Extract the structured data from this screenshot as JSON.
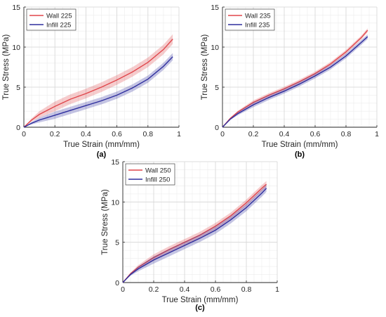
{
  "chart_data": [
    {
      "type": "line",
      "panel_label": "(a)",
      "xlabel": "True Strain (mm/mm)",
      "ylabel": "True Stress (MPa)",
      "xlim": [
        0,
        1
      ],
      "ylim": [
        0,
        15
      ],
      "xticks": [
        "0",
        "0.2",
        "0.4",
        "0.6",
        "0.8",
        "1"
      ],
      "yticks": [
        "0",
        "5",
        "10",
        "15"
      ],
      "grid": true,
      "legend_position": "top-left",
      "series": [
        {
          "name": "Wall 225",
          "color": "#e0474c",
          "x": [
            0,
            0.05,
            0.1,
            0.2,
            0.3,
            0.4,
            0.5,
            0.6,
            0.7,
            0.8,
            0.9,
            0.96
          ],
          "y": [
            0,
            0.9,
            1.6,
            2.6,
            3.5,
            4.2,
            5.0,
            5.9,
            6.9,
            8.1,
            9.7,
            11.0
          ],
          "band": 0.6
        },
        {
          "name": "Infill 225",
          "color": "#2e2e9e",
          "x": [
            0,
            0.05,
            0.1,
            0.2,
            0.3,
            0.4,
            0.5,
            0.6,
            0.7,
            0.8,
            0.9,
            0.96
          ],
          "y": [
            0,
            0.5,
            0.9,
            1.5,
            2.1,
            2.7,
            3.3,
            4.0,
            4.9,
            6.0,
            7.6,
            8.8
          ],
          "band": 0.45
        }
      ]
    },
    {
      "type": "line",
      "panel_label": "(b)",
      "xlabel": "True Strain (mm/mm)",
      "ylabel": "True Stress (MPa)",
      "xlim": [
        0,
        1
      ],
      "ylim": [
        0,
        15
      ],
      "xticks": [
        "0",
        "0.2",
        "0.4",
        "0.6",
        "0.8",
        "1"
      ],
      "yticks": [
        "0",
        "5",
        "10",
        "15"
      ],
      "grid": true,
      "legend_position": "top-left",
      "series": [
        {
          "name": "Wall 235",
          "color": "#e0474c",
          "x": [
            0,
            0.05,
            0.1,
            0.2,
            0.3,
            0.4,
            0.5,
            0.6,
            0.7,
            0.8,
            0.9,
            0.94
          ],
          "y": [
            0,
            1.1,
            1.9,
            3.1,
            4.0,
            4.8,
            5.7,
            6.7,
            7.9,
            9.4,
            11.2,
            12.1
          ],
          "band": 0.25
        },
        {
          "name": "Infill 235",
          "color": "#2e2e9e",
          "x": [
            0,
            0.05,
            0.1,
            0.2,
            0.3,
            0.4,
            0.5,
            0.6,
            0.7,
            0.8,
            0.9,
            0.94
          ],
          "y": [
            0,
            1.0,
            1.7,
            2.8,
            3.7,
            4.5,
            5.4,
            6.4,
            7.5,
            8.9,
            10.6,
            11.3
          ],
          "band": 0.3
        }
      ]
    },
    {
      "type": "line",
      "panel_label": "(c)",
      "xlabel": "True Strain (mm/mm)",
      "ylabel": "True Stress (MPa)",
      "xlim": [
        0,
        1
      ],
      "ylim": [
        0,
        15
      ],
      "xticks": [
        "0",
        "0.2",
        "0.4",
        "0.6",
        "0.8",
        "1"
      ],
      "yticks": [
        "0",
        "5",
        "10",
        "15"
      ],
      "grid": true,
      "legend_position": "top-left",
      "series": [
        {
          "name": "Wall 250",
          "color": "#e0474c",
          "x": [
            0,
            0.05,
            0.1,
            0.2,
            0.3,
            0.4,
            0.5,
            0.6,
            0.7,
            0.8,
            0.9,
            0.93
          ],
          "y": [
            0,
            1.1,
            1.9,
            3.1,
            4.1,
            5.0,
            5.9,
            7.0,
            8.3,
            9.9,
            11.7,
            12.2
          ],
          "band": 0.4
        },
        {
          "name": "Infill 250",
          "color": "#2e2e9e",
          "x": [
            0,
            0.05,
            0.1,
            0.2,
            0.3,
            0.4,
            0.5,
            0.6,
            0.7,
            0.8,
            0.9,
            0.93
          ],
          "y": [
            0,
            1.0,
            1.7,
            2.8,
            3.7,
            4.6,
            5.5,
            6.5,
            7.8,
            9.3,
            11.1,
            11.7
          ],
          "band": 0.45
        }
      ]
    }
  ]
}
